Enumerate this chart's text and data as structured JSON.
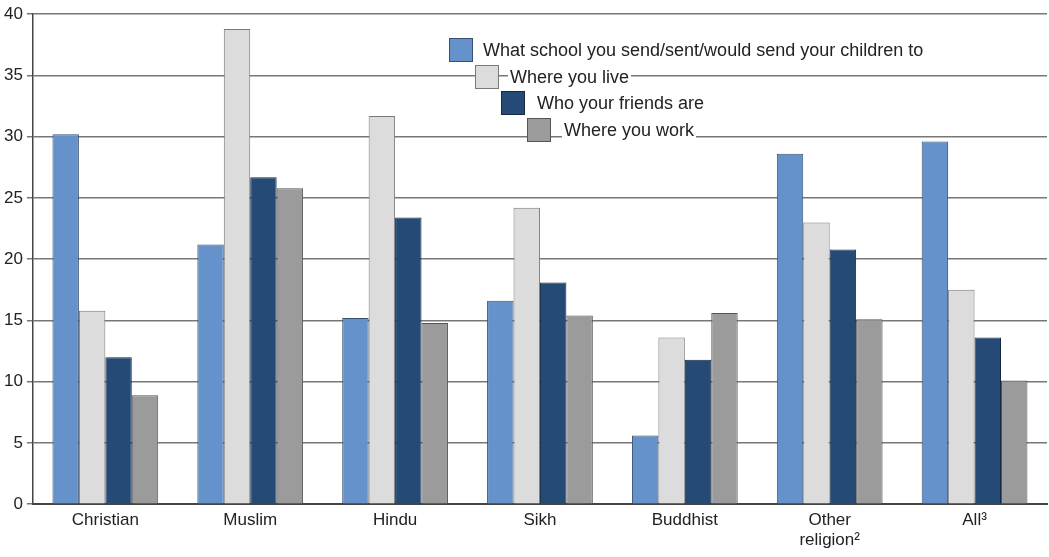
{
  "chart_data": {
    "type": "bar",
    "categories": [
      "Christian",
      "Muslim",
      "Hindu",
      "Sikh",
      "Buddhist",
      "Other religion²",
      "All³"
    ],
    "series": [
      {
        "name": "What school you send/sent/would send your children to",
        "color": "#6592cb",
        "values": [
          30.2,
          21.2,
          15.2,
          16.6,
          5.6,
          28.6,
          29.6
        ]
      },
      {
        "name": "Where you live",
        "color": "#dcdcdc",
        "values": [
          15.8,
          38.8,
          31.7,
          24.2,
          13.6,
          23.0,
          17.5
        ]
      },
      {
        "name": "Who your friends are",
        "color": "#264a76",
        "values": [
          12.0,
          26.7,
          23.4,
          18.1,
          11.8,
          20.8,
          13.6
        ]
      },
      {
        "name": "Where you work",
        "color": "#9b9b9b",
        "values": [
          8.9,
          25.8,
          14.8,
          15.4,
          15.6,
          15.1,
          10.1
        ]
      }
    ],
    "ylim": [
      0,
      40
    ],
    "yticks": [
      0,
      5,
      10,
      15,
      20,
      25,
      30,
      35,
      40
    ],
    "grid": "y",
    "legend": "top right"
  }
}
